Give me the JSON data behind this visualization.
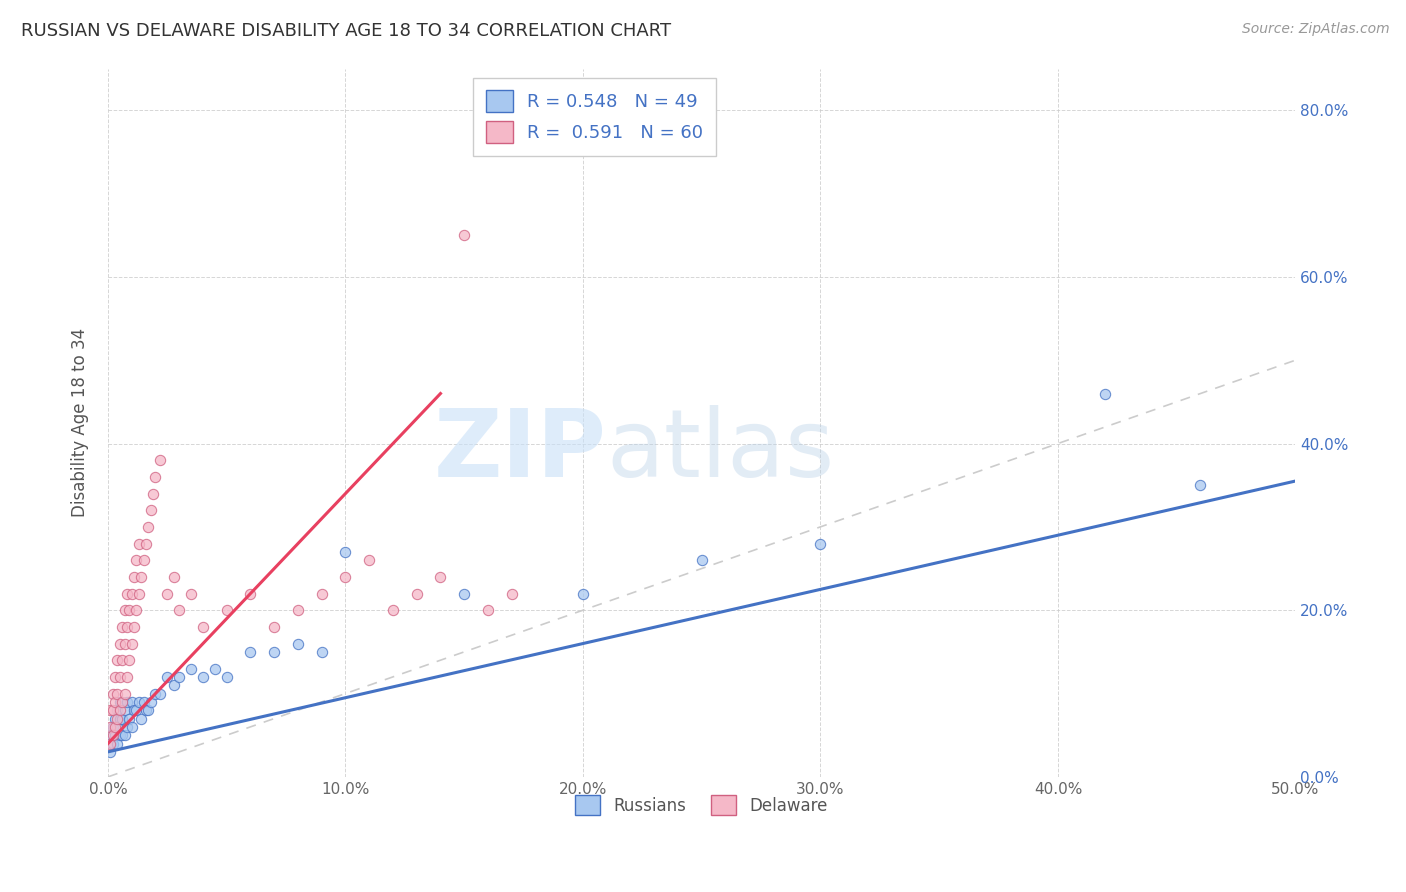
{
  "title": "RUSSIAN VS DELAWARE DISABILITY AGE 18 TO 34 CORRELATION CHART",
  "source": "Source: ZipAtlas.com",
  "xlabel_bottom": [
    "0.0%",
    "10.0%",
    "20.0%",
    "30.0%",
    "40.0%",
    "50.0%"
  ],
  "ylabel": "Disability Age 18 to 34",
  "ylabel_right": [
    "0.0%",
    "20.0%",
    "40.0%",
    "60.0%",
    "80.0%"
  ],
  "xlim": [
    0.0,
    0.5
  ],
  "ylim": [
    0.0,
    0.85
  ],
  "legend_r_russians": "0.548",
  "legend_n_russians": "49",
  "legend_r_delaware": "0.591",
  "legend_n_delaware": "60",
  "color_russians": "#A8C8F0",
  "color_delaware": "#F5B8C8",
  "color_russians_line": "#4472C4",
  "color_delaware_line": "#E84060",
  "color_diag_line": "#CCCCCC",
  "watermark_zip": "ZIP",
  "watermark_atlas": "atlas",
  "russians_x": [
    0.001,
    0.001,
    0.002,
    0.002,
    0.003,
    0.003,
    0.004,
    0.004,
    0.004,
    0.005,
    0.005,
    0.005,
    0.006,
    0.006,
    0.007,
    0.007,
    0.008,
    0.008,
    0.009,
    0.01,
    0.01,
    0.011,
    0.012,
    0.013,
    0.014,
    0.015,
    0.016,
    0.017,
    0.018,
    0.02,
    0.022,
    0.025,
    0.028,
    0.03,
    0.035,
    0.04,
    0.045,
    0.05,
    0.06,
    0.07,
    0.08,
    0.09,
    0.1,
    0.15,
    0.2,
    0.25,
    0.3,
    0.42,
    0.46
  ],
  "russians_y": [
    0.03,
    0.05,
    0.04,
    0.06,
    0.05,
    0.07,
    0.04,
    0.06,
    0.08,
    0.05,
    0.07,
    0.09,
    0.05,
    0.07,
    0.05,
    0.08,
    0.06,
    0.09,
    0.07,
    0.06,
    0.09,
    0.08,
    0.08,
    0.09,
    0.07,
    0.09,
    0.08,
    0.08,
    0.09,
    0.1,
    0.1,
    0.12,
    0.11,
    0.12,
    0.13,
    0.12,
    0.13,
    0.12,
    0.15,
    0.15,
    0.16,
    0.15,
    0.27,
    0.22,
    0.22,
    0.26,
    0.28,
    0.46,
    0.35
  ],
  "delaware_x": [
    0.001,
    0.001,
    0.001,
    0.002,
    0.002,
    0.002,
    0.003,
    0.003,
    0.003,
    0.004,
    0.004,
    0.004,
    0.005,
    0.005,
    0.005,
    0.006,
    0.006,
    0.006,
    0.007,
    0.007,
    0.007,
    0.008,
    0.008,
    0.008,
    0.009,
    0.009,
    0.01,
    0.01,
    0.011,
    0.011,
    0.012,
    0.012,
    0.013,
    0.013,
    0.014,
    0.015,
    0.016,
    0.017,
    0.018,
    0.019,
    0.02,
    0.022,
    0.025,
    0.028,
    0.03,
    0.035,
    0.04,
    0.05,
    0.06,
    0.07,
    0.08,
    0.09,
    0.1,
    0.11,
    0.12,
    0.13,
    0.14,
    0.15,
    0.16,
    0.17
  ],
  "delaware_y": [
    0.04,
    0.06,
    0.08,
    0.05,
    0.08,
    0.1,
    0.06,
    0.09,
    0.12,
    0.07,
    0.1,
    0.14,
    0.08,
    0.12,
    0.16,
    0.09,
    0.14,
    0.18,
    0.1,
    0.16,
    0.2,
    0.12,
    0.18,
    0.22,
    0.14,
    0.2,
    0.16,
    0.22,
    0.18,
    0.24,
    0.2,
    0.26,
    0.22,
    0.28,
    0.24,
    0.26,
    0.28,
    0.3,
    0.32,
    0.34,
    0.36,
    0.38,
    0.22,
    0.24,
    0.2,
    0.22,
    0.18,
    0.2,
    0.22,
    0.18,
    0.2,
    0.22,
    0.24,
    0.26,
    0.2,
    0.22,
    0.24,
    0.65,
    0.2,
    0.22
  ],
  "diag_line_x": [
    0.0,
    0.5
  ],
  "diag_line_y": [
    0.0,
    0.5
  ],
  "russians_line_x": [
    0.0,
    0.5
  ],
  "russians_line_y": [
    0.03,
    0.355
  ],
  "delaware_line_x": [
    0.0,
    0.14
  ],
  "delaware_line_y": [
    0.04,
    0.46
  ]
}
